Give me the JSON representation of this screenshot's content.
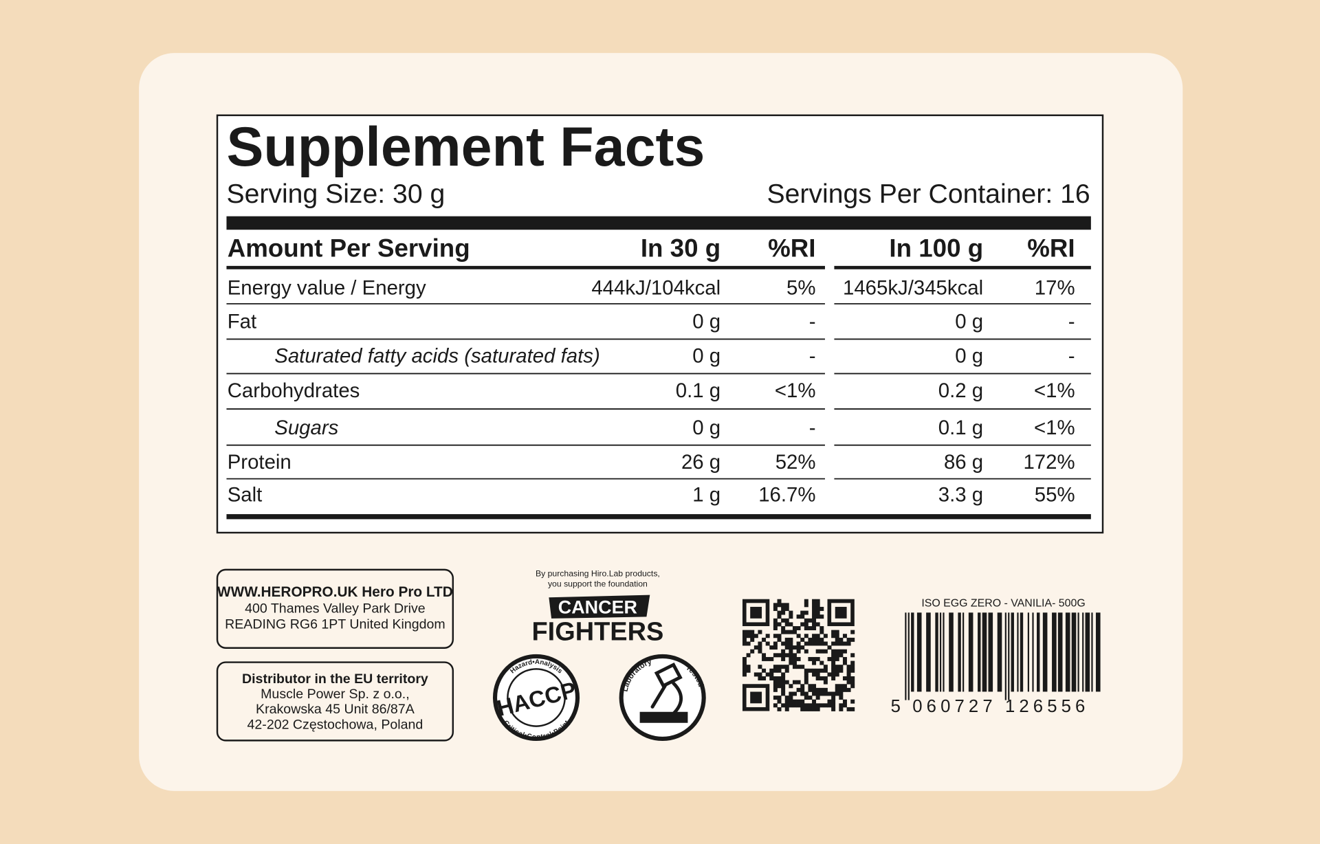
{
  "panel": {
    "title": "Supplement Facts",
    "serving_size": "Serving Size: 30 g",
    "servings_per_container": "Servings Per Container: 16",
    "table": {
      "header": [
        "Amount Per Serving",
        "In 30 g",
        "%RI",
        "In 100 g",
        "%RI"
      ],
      "rows": [
        [
          "Energy value / Energy",
          "444kJ/104kcal",
          "5%",
          "1465kJ/345kcal",
          "17%"
        ],
        [
          "Fat",
          "0 g",
          "-",
          "0 g",
          "-"
        ],
        [
          "Saturated fatty acids (saturated fats)",
          "0 g",
          "-",
          "0 g",
          "-"
        ],
        [
          "Carbohydrates",
          "0.1 g",
          "<1%",
          "0.2 g",
          "<1%"
        ],
        [
          "Sugars",
          "0 g",
          "-",
          "0.1 g",
          "<1%"
        ],
        [
          "Protein",
          "26 g",
          "52%",
          "86 g",
          "172%"
        ],
        [
          "Salt",
          "1 g",
          "16.7%",
          "3.3 g",
          "55%"
        ]
      ]
    }
  },
  "company": {
    "line1": "WWW.HEROPRO.UK Hero Pro LTD",
    "line2": "400 Thames Valley Park Drive",
    "line3": "READING RG6 1PT United Kingdom"
  },
  "distributor": {
    "title": "Distributor in the EU territory",
    "line1": "Muscle Power Sp. z o.o.,",
    "line2": "Krakowska 45 Unit 86/87A",
    "line3": "42-202 Częstochowa, Poland"
  },
  "foundation": {
    "line1": "By purchasing Hiro.Lab products,",
    "line2": "you support the foundation",
    "badge": "CANCER",
    "name": "FIGHTERS"
  },
  "haccp": {
    "label": "HACCP",
    "top": "Hazard•Analysis",
    "bottom": "Critical•Control•Point"
  },
  "lab": {
    "left": "Laboratory",
    "right": "Tested"
  },
  "barcode": {
    "product": "ISO EGG ZERO - VANILIA- 500G",
    "digit": "5",
    "group1": "060727",
    "group2": "126556"
  }
}
